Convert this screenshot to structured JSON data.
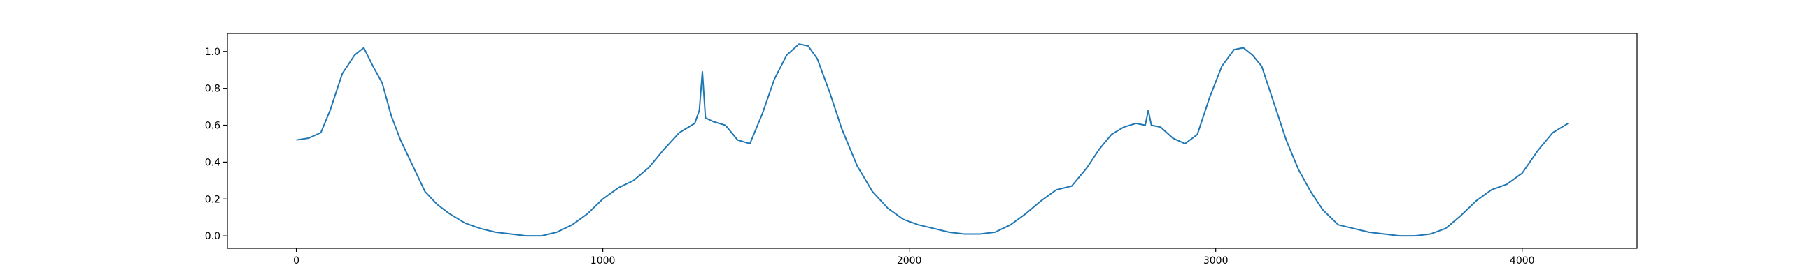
{
  "chart_data": {
    "type": "line",
    "title": "",
    "xlabel": "",
    "ylabel": "",
    "xlim": [
      -225,
      4375
    ],
    "ylim": [
      -0.0675,
      1.0975
    ],
    "grid": false,
    "legend": "none",
    "x_ticks": [
      0,
      1000,
      2000,
      3000,
      4000
    ],
    "x_tick_labels": [
      "0",
      "1000",
      "2000",
      "3000",
      "4000"
    ],
    "y_ticks": [
      0.0,
      0.2,
      0.4,
      0.6,
      0.8,
      1.0
    ],
    "y_tick_labels": [
      "0.0",
      "0.2",
      "0.4",
      "0.6",
      "0.8",
      "1.0"
    ],
    "series": [
      {
        "color": "#1f77b4",
        "x": [
          0,
          40,
          80,
          110,
          150,
          190,
          220,
          250,
          280,
          310,
          340,
          380,
          420,
          460,
          500,
          550,
          600,
          650,
          700,
          750,
          800,
          850,
          900,
          950,
          1000,
          1050,
          1100,
          1150,
          1200,
          1250,
          1300,
          1315,
          1325,
          1335,
          1360,
          1400,
          1440,
          1480,
          1520,
          1560,
          1600,
          1640,
          1670,
          1700,
          1740,
          1780,
          1830,
          1880,
          1930,
          1980,
          2030,
          2080,
          2130,
          2180,
          2230,
          2280,
          2330,
          2380,
          2430,
          2480,
          2530,
          2580,
          2620,
          2660,
          2700,
          2740,
          2770,
          2780,
          2790,
          2820,
          2860,
          2900,
          2940,
          2980,
          3020,
          3060,
          3090,
          3120,
          3150,
          3190,
          3230,
          3270,
          3310,
          3350,
          3400,
          3450,
          3500,
          3550,
          3600,
          3650,
          3700,
          3750,
          3800,
          3850,
          3900,
          3950,
          4000,
          4050,
          4100,
          4150
        ],
        "y": [
          0.52,
          0.53,
          0.56,
          0.68,
          0.88,
          0.98,
          1.02,
          0.92,
          0.83,
          0.65,
          0.52,
          0.38,
          0.24,
          0.17,
          0.12,
          0.07,
          0.04,
          0.02,
          0.01,
          0.0,
          0.0,
          0.02,
          0.06,
          0.12,
          0.2,
          0.26,
          0.3,
          0.37,
          0.47,
          0.56,
          0.61,
          0.68,
          0.89,
          0.64,
          0.62,
          0.6,
          0.52,
          0.5,
          0.66,
          0.85,
          0.98,
          1.04,
          1.03,
          0.96,
          0.78,
          0.58,
          0.38,
          0.24,
          0.15,
          0.09,
          0.06,
          0.04,
          0.02,
          0.01,
          0.01,
          0.02,
          0.06,
          0.12,
          0.19,
          0.25,
          0.27,
          0.37,
          0.47,
          0.55,
          0.59,
          0.61,
          0.6,
          0.68,
          0.6,
          0.59,
          0.53,
          0.5,
          0.55,
          0.75,
          0.92,
          1.01,
          1.02,
          0.98,
          0.92,
          0.72,
          0.52,
          0.36,
          0.24,
          0.14,
          0.06,
          0.04,
          0.02,
          0.01,
          0.0,
          0.0,
          0.01,
          0.04,
          0.11,
          0.19,
          0.25,
          0.28,
          0.34,
          0.46,
          0.56,
          0.61
        ]
      }
    ]
  }
}
